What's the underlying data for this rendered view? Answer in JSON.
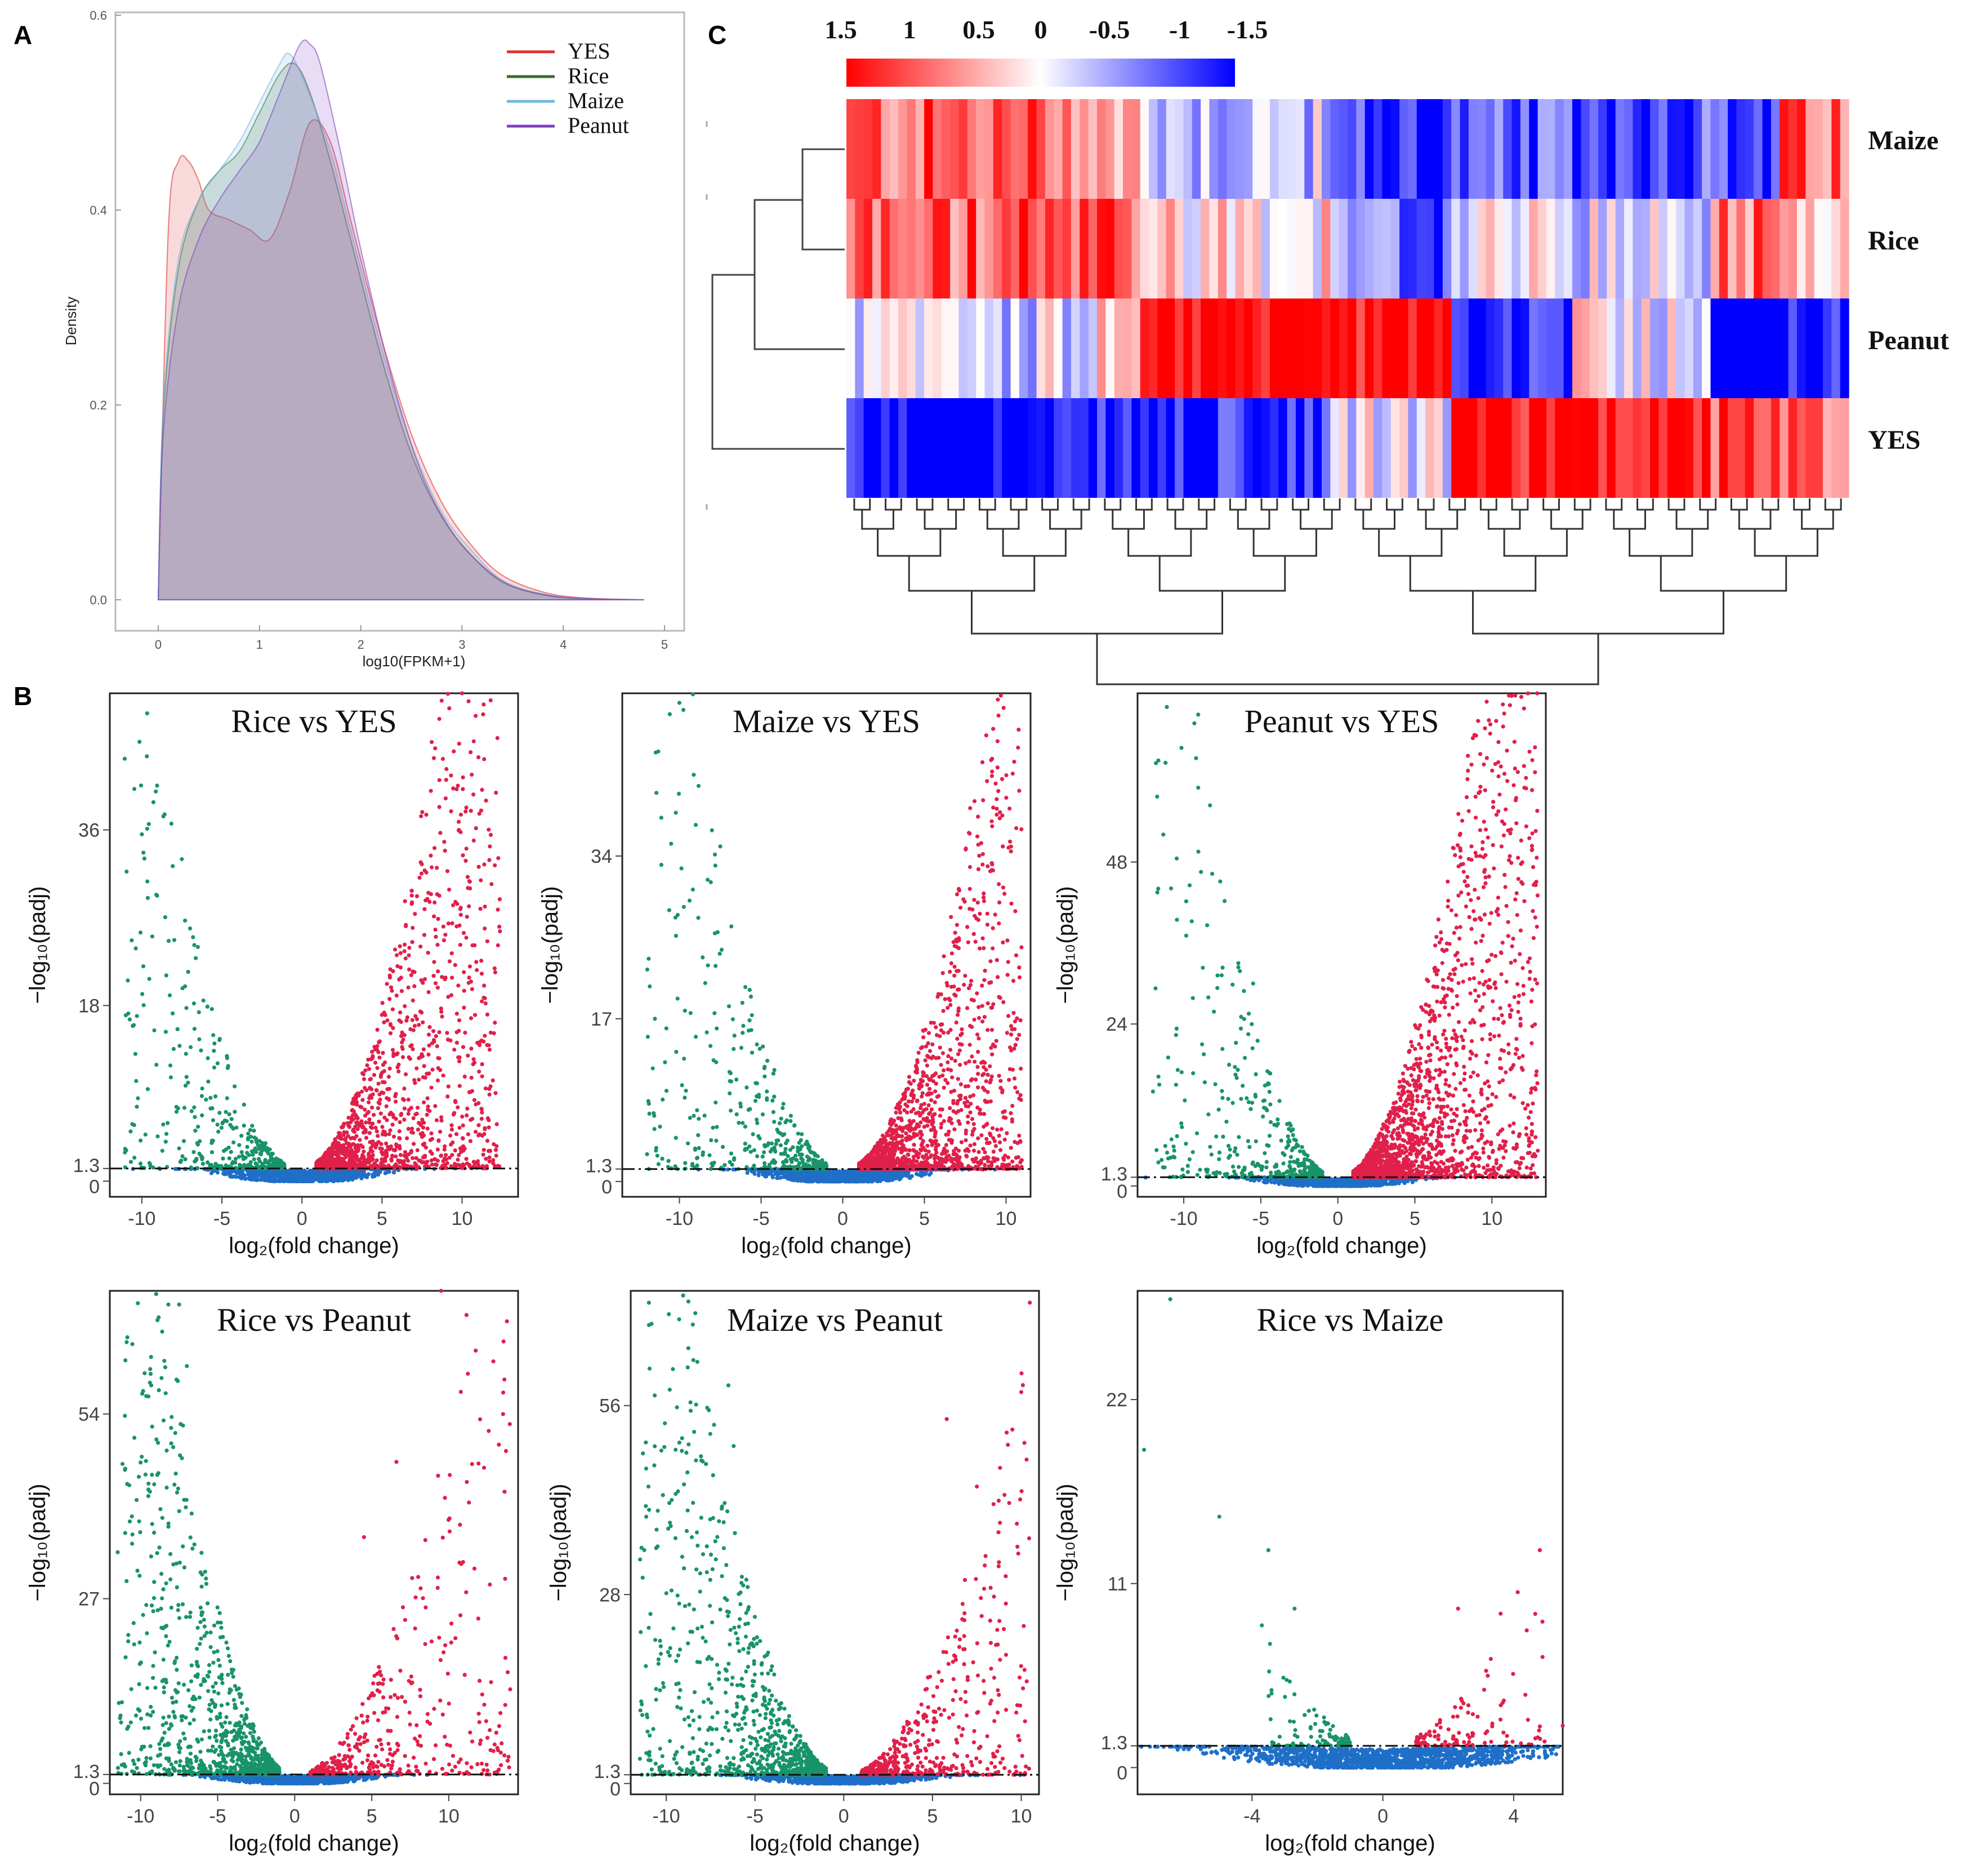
{
  "panels": {
    "a": "A",
    "b": "B",
    "c": "C"
  },
  "chart_data": [
    {
      "id": "density",
      "type": "area",
      "title": "",
      "xlabel": "log10(FPKM+1)",
      "ylabel": "Density",
      "xlim": [
        -0.2,
        5
      ],
      "ylim": [
        0,
        0.6
      ],
      "xticks": [
        "0",
        "1",
        "2",
        "3",
        "4",
        "5"
      ],
      "yticks": [
        "0.0",
        "0.2",
        "0.4",
        "0.6"
      ],
      "legend_position": "top-right",
      "series": [
        {
          "name": "YES",
          "color": "#e03030",
          "x": [
            0.0,
            0.1,
            0.2,
            0.3,
            0.4,
            0.5,
            0.7,
            0.9,
            1.1,
            1.3,
            1.5,
            1.7,
            1.9,
            2.2,
            2.5,
            2.8,
            3.1,
            3.4,
            3.8,
            4.2,
            4.8
          ],
          "y": [
            0.0,
            0.38,
            0.45,
            0.45,
            0.43,
            0.4,
            0.39,
            0.38,
            0.37,
            0.42,
            0.49,
            0.47,
            0.39,
            0.27,
            0.17,
            0.1,
            0.055,
            0.025,
            0.008,
            0.002,
            0.0
          ]
        },
        {
          "name": "Rice",
          "color": "#3a6b2a",
          "x": [
            0.0,
            0.05,
            0.2,
            0.4,
            0.6,
            0.8,
            1.0,
            1.2,
            1.35,
            1.5,
            1.7,
            1.9,
            2.2,
            2.5,
            2.8,
            3.1,
            3.4,
            3.8,
            4.2,
            4.8
          ],
          "y": [
            0.0,
            0.19,
            0.34,
            0.41,
            0.44,
            0.46,
            0.5,
            0.54,
            0.55,
            0.52,
            0.45,
            0.37,
            0.25,
            0.15,
            0.085,
            0.045,
            0.018,
            0.005,
            0.001,
            0.0
          ]
        },
        {
          "name": "Maize",
          "color": "#70b8e0",
          "x": [
            0.0,
            0.05,
            0.2,
            0.4,
            0.6,
            0.8,
            1.0,
            1.2,
            1.3,
            1.45,
            1.7,
            1.9,
            2.2,
            2.5,
            2.8,
            3.1,
            3.4,
            3.8,
            4.2,
            4.8
          ],
          "y": [
            0.0,
            0.2,
            0.35,
            0.41,
            0.44,
            0.47,
            0.51,
            0.55,
            0.56,
            0.53,
            0.46,
            0.38,
            0.26,
            0.16,
            0.09,
            0.05,
            0.02,
            0.006,
            0.001,
            0.0
          ]
        },
        {
          "name": "Peanut",
          "color": "#8040c0",
          "x": [
            0.0,
            0.05,
            0.2,
            0.4,
            0.6,
            0.8,
            1.0,
            1.2,
            1.4,
            1.5,
            1.6,
            1.8,
            2.0,
            2.3,
            2.6,
            2.9,
            3.2,
            3.5,
            3.9,
            4.3,
            4.8
          ],
          "y": [
            0.0,
            0.17,
            0.3,
            0.37,
            0.41,
            0.44,
            0.47,
            0.52,
            0.57,
            0.57,
            0.55,
            0.46,
            0.36,
            0.23,
            0.13,
            0.07,
            0.035,
            0.014,
            0.004,
            0.001,
            0.0
          ]
        }
      ]
    },
    {
      "id": "heatmap",
      "type": "heatmap",
      "rows": [
        "Maize",
        "Rice",
        "Peanut",
        "YES"
      ],
      "colorbar_ticks": [
        "1.5",
        "1",
        "0.5",
        "0",
        "-0.5",
        "-1",
        "-1.5"
      ],
      "colorbar_range": [
        1.5,
        -1.5
      ],
      "colors": {
        "high": "#ff0000",
        "mid": "#ffffff",
        "low": "#0000ff"
      },
      "column_blocks": [
        {
          "n": 28,
          "values": [
            0.9,
            0.9,
            -0.2,
            -1.6
          ]
        },
        {
          "n": 6,
          "values": [
            0.5,
            1.0,
            0.3,
            -1.5
          ]
        },
        {
          "n": 6,
          "values": [
            -0.2,
            0.3,
            1.6,
            -1.4
          ]
        },
        {
          "n": 16,
          "values": [
            -0.3,
            0.2,
            1.6,
            -1.4
          ]
        },
        {
          "n": 14,
          "values": [
            -1.2,
            -0.9,
            1.6,
            -0.1
          ]
        },
        {
          "n": 14,
          "values": [
            -1.1,
            -0.1,
            -1.2,
            1.6
          ]
        },
        {
          "n": 16,
          "values": [
            -1.0,
            -0.2,
            0.0,
            1.6
          ]
        },
        {
          "n": 8,
          "values": [
            -1.2,
            0.9,
            -1.6,
            0.9
          ]
        },
        {
          "n": 8,
          "values": [
            0.8,
            0.6,
            -1.5,
            0.7
          ]
        }
      ]
    },
    {
      "id": "volcano-rice-vs-yes",
      "type": "scatter",
      "title": "Rice vs YES",
      "xlabel": "log₂(fold change)",
      "ylabel": "−log₁₀(padj)",
      "xlim": [
        -12,
        13.5
      ],
      "ylim": [
        -1.6,
        50
      ],
      "xticks": [
        -10,
        -5,
        0,
        5,
        10
      ],
      "yticks": [
        0,
        1.3,
        18,
        36
      ],
      "threshold": 1.3,
      "x_offset": -0.1,
      "green_n": 420,
      "red_n": 1500,
      "blue_n": 900,
      "green_steep": 0.55,
      "red_steep": 0.65,
      "green_xmin": -11,
      "red_xmax": 12.5,
      "outliers_green": [
        [
          -7.5,
          33
        ],
        [
          -6.8,
          25
        ],
        [
          -6.5,
          24
        ],
        [
          -11,
          17
        ],
        [
          -10.5,
          16
        ]
      ],
      "outliers_red": [
        [
          10,
          50
        ],
        [
          11.5,
          39
        ],
        [
          9.8,
          36
        ],
        [
          10.5,
          30
        ]
      ]
    },
    {
      "id": "volcano-maize-vs-yes",
      "type": "scatter",
      "title": "Maize vs YES",
      "xlabel": "log₂(fold change)",
      "ylabel": "−log₁₀(padj)",
      "xlim": [
        -13.5,
        11.5
      ],
      "ylim": [
        -1.6,
        51
      ],
      "xticks": [
        -10,
        -5,
        0,
        5,
        10
      ],
      "yticks": [
        0,
        1.3,
        17,
        34
      ],
      "threshold": 1.3,
      "x_offset": 0,
      "green_n": 420,
      "red_n": 1500,
      "blue_n": 900,
      "green_steep": 0.6,
      "red_steep": 0.6,
      "green_xmin": -12,
      "red_xmax": 11,
      "outliers_green": [
        [
          -10,
          50
        ],
        [
          -7.5,
          35
        ],
        [
          -7.8,
          33
        ],
        [
          -11.5,
          17
        ],
        [
          -10.8,
          16
        ]
      ],
      "outliers_red": [
        [
          7.8,
          39
        ],
        [
          9.8,
          35
        ],
        [
          7,
          30
        ]
      ]
    },
    {
      "id": "volcano-peanut-vs-yes",
      "type": "scatter",
      "title": "Peanut vs YES",
      "xlabel": "log₂(fold change)",
      "ylabel": "−log₁₀(padj)",
      "xlim": [
        -13,
        13.5
      ],
      "ylim": [
        -1.6,
        73
      ],
      "xticks": [
        -10,
        -5,
        0,
        5,
        10
      ],
      "yticks": [
        0,
        1.3,
        24,
        48
      ],
      "threshold": 1.3,
      "x_offset": 0,
      "green_n": 420,
      "red_n": 2000,
      "blue_n": 900,
      "green_steep": 0.85,
      "red_steep": 0.9,
      "green_xmin": -12,
      "red_xmax": 13,
      "outliers_green": [
        [
          -5.5,
          30
        ],
        [
          -12,
          14
        ],
        [
          -10.5,
          15
        ]
      ],
      "outliers_red": [
        [
          9.8,
          69
        ],
        [
          10.8,
          70
        ],
        [
          12.8,
          65
        ],
        [
          11,
          60
        ],
        [
          10.5,
          58
        ]
      ]
    },
    {
      "id": "volcano-rice-vs-peanut",
      "type": "scatter",
      "title": "Rice vs Peanut",
      "xlabel": "log₂(fold change)",
      "ylabel": "−log₁₀(padj)",
      "xlim": [
        -12,
        14.5
      ],
      "ylim": [
        -1.6,
        72
      ],
      "xticks": [
        -10,
        -5,
        0,
        5,
        10
      ],
      "yticks": [
        0,
        1.3,
        27,
        54
      ],
      "threshold": 1.3,
      "x_offset": 0,
      "green_n": 1100,
      "red_n": 450,
      "blue_n": 900,
      "green_steep": 1.0,
      "red_steep": 0.55,
      "green_xmin": -11.5,
      "red_xmax": 14,
      "outliers_green": [
        [
          -8.2,
          70
        ],
        [
          -7.5,
          70
        ],
        [
          -7,
          61
        ],
        [
          -11,
          46
        ],
        [
          -9.5,
          42
        ]
      ],
      "outliers_red": [
        [
          9.5,
          72
        ],
        [
          6.6,
          47
        ],
        [
          4.5,
          36
        ],
        [
          12,
          15
        ]
      ]
    },
    {
      "id": "volcano-maize-vs-peanut",
      "type": "scatter",
      "title": "Maize vs Peanut",
      "xlabel": "log₂(fold change)",
      "ylabel": "−log₁₀(padj)",
      "xlim": [
        -12,
        11
      ],
      "ylim": [
        -1.6,
        73
      ],
      "xticks": [
        -10,
        -5,
        0,
        5,
        10
      ],
      "yticks": [
        0,
        1.3,
        28,
        56
      ],
      "threshold": 1.3,
      "x_offset": 0,
      "green_n": 1000,
      "red_n": 500,
      "blue_n": 900,
      "green_steep": 1.0,
      "red_steep": 0.65,
      "green_xmin": -11.5,
      "red_xmax": 10.5,
      "outliers_green": [
        [
          -8.5,
          68
        ],
        [
          -6.5,
          59
        ],
        [
          -11,
          44
        ],
        [
          -6.2,
          50
        ]
      ],
      "outliers_red": [
        [
          10,
          58
        ],
        [
          5.8,
          54
        ],
        [
          10.3,
          48
        ],
        [
          7.5,
          44
        ]
      ]
    },
    {
      "id": "volcano-rice-vs-maize",
      "type": "scatter",
      "title": "Rice vs Maize",
      "xlabel": "log₂(fold change)",
      "ylabel": "−log₁₀(padj)",
      "xlim": [
        -7.5,
        5.5
      ],
      "ylim": [
        -1.6,
        28.5
      ],
      "xticks": [
        -4,
        0,
        4
      ],
      "yticks": [
        0,
        1.3,
        11,
        22
      ],
      "threshold": 1.3,
      "x_offset": 0,
      "green_n": 110,
      "red_n": 110,
      "blue_n": 1400,
      "green_steep": 0.55,
      "red_steep": 0.55,
      "green_xmin": -3.5,
      "red_xmax": 5,
      "outliers_green": [
        [
          -6.5,
          28
        ],
        [
          -7.3,
          19
        ],
        [
          -5,
          15
        ],
        [
          -3.5,
          13
        ],
        [
          -3.7,
          8.5
        ],
        [
          -2.7,
          9.5
        ]
      ],
      "outliers_red": [
        [
          4.8,
          13
        ],
        [
          2.3,
          9.5
        ],
        [
          3.6,
          9.2
        ],
        [
          4.4,
          8.2
        ],
        [
          5.5,
          2.5
        ]
      ]
    }
  ]
}
